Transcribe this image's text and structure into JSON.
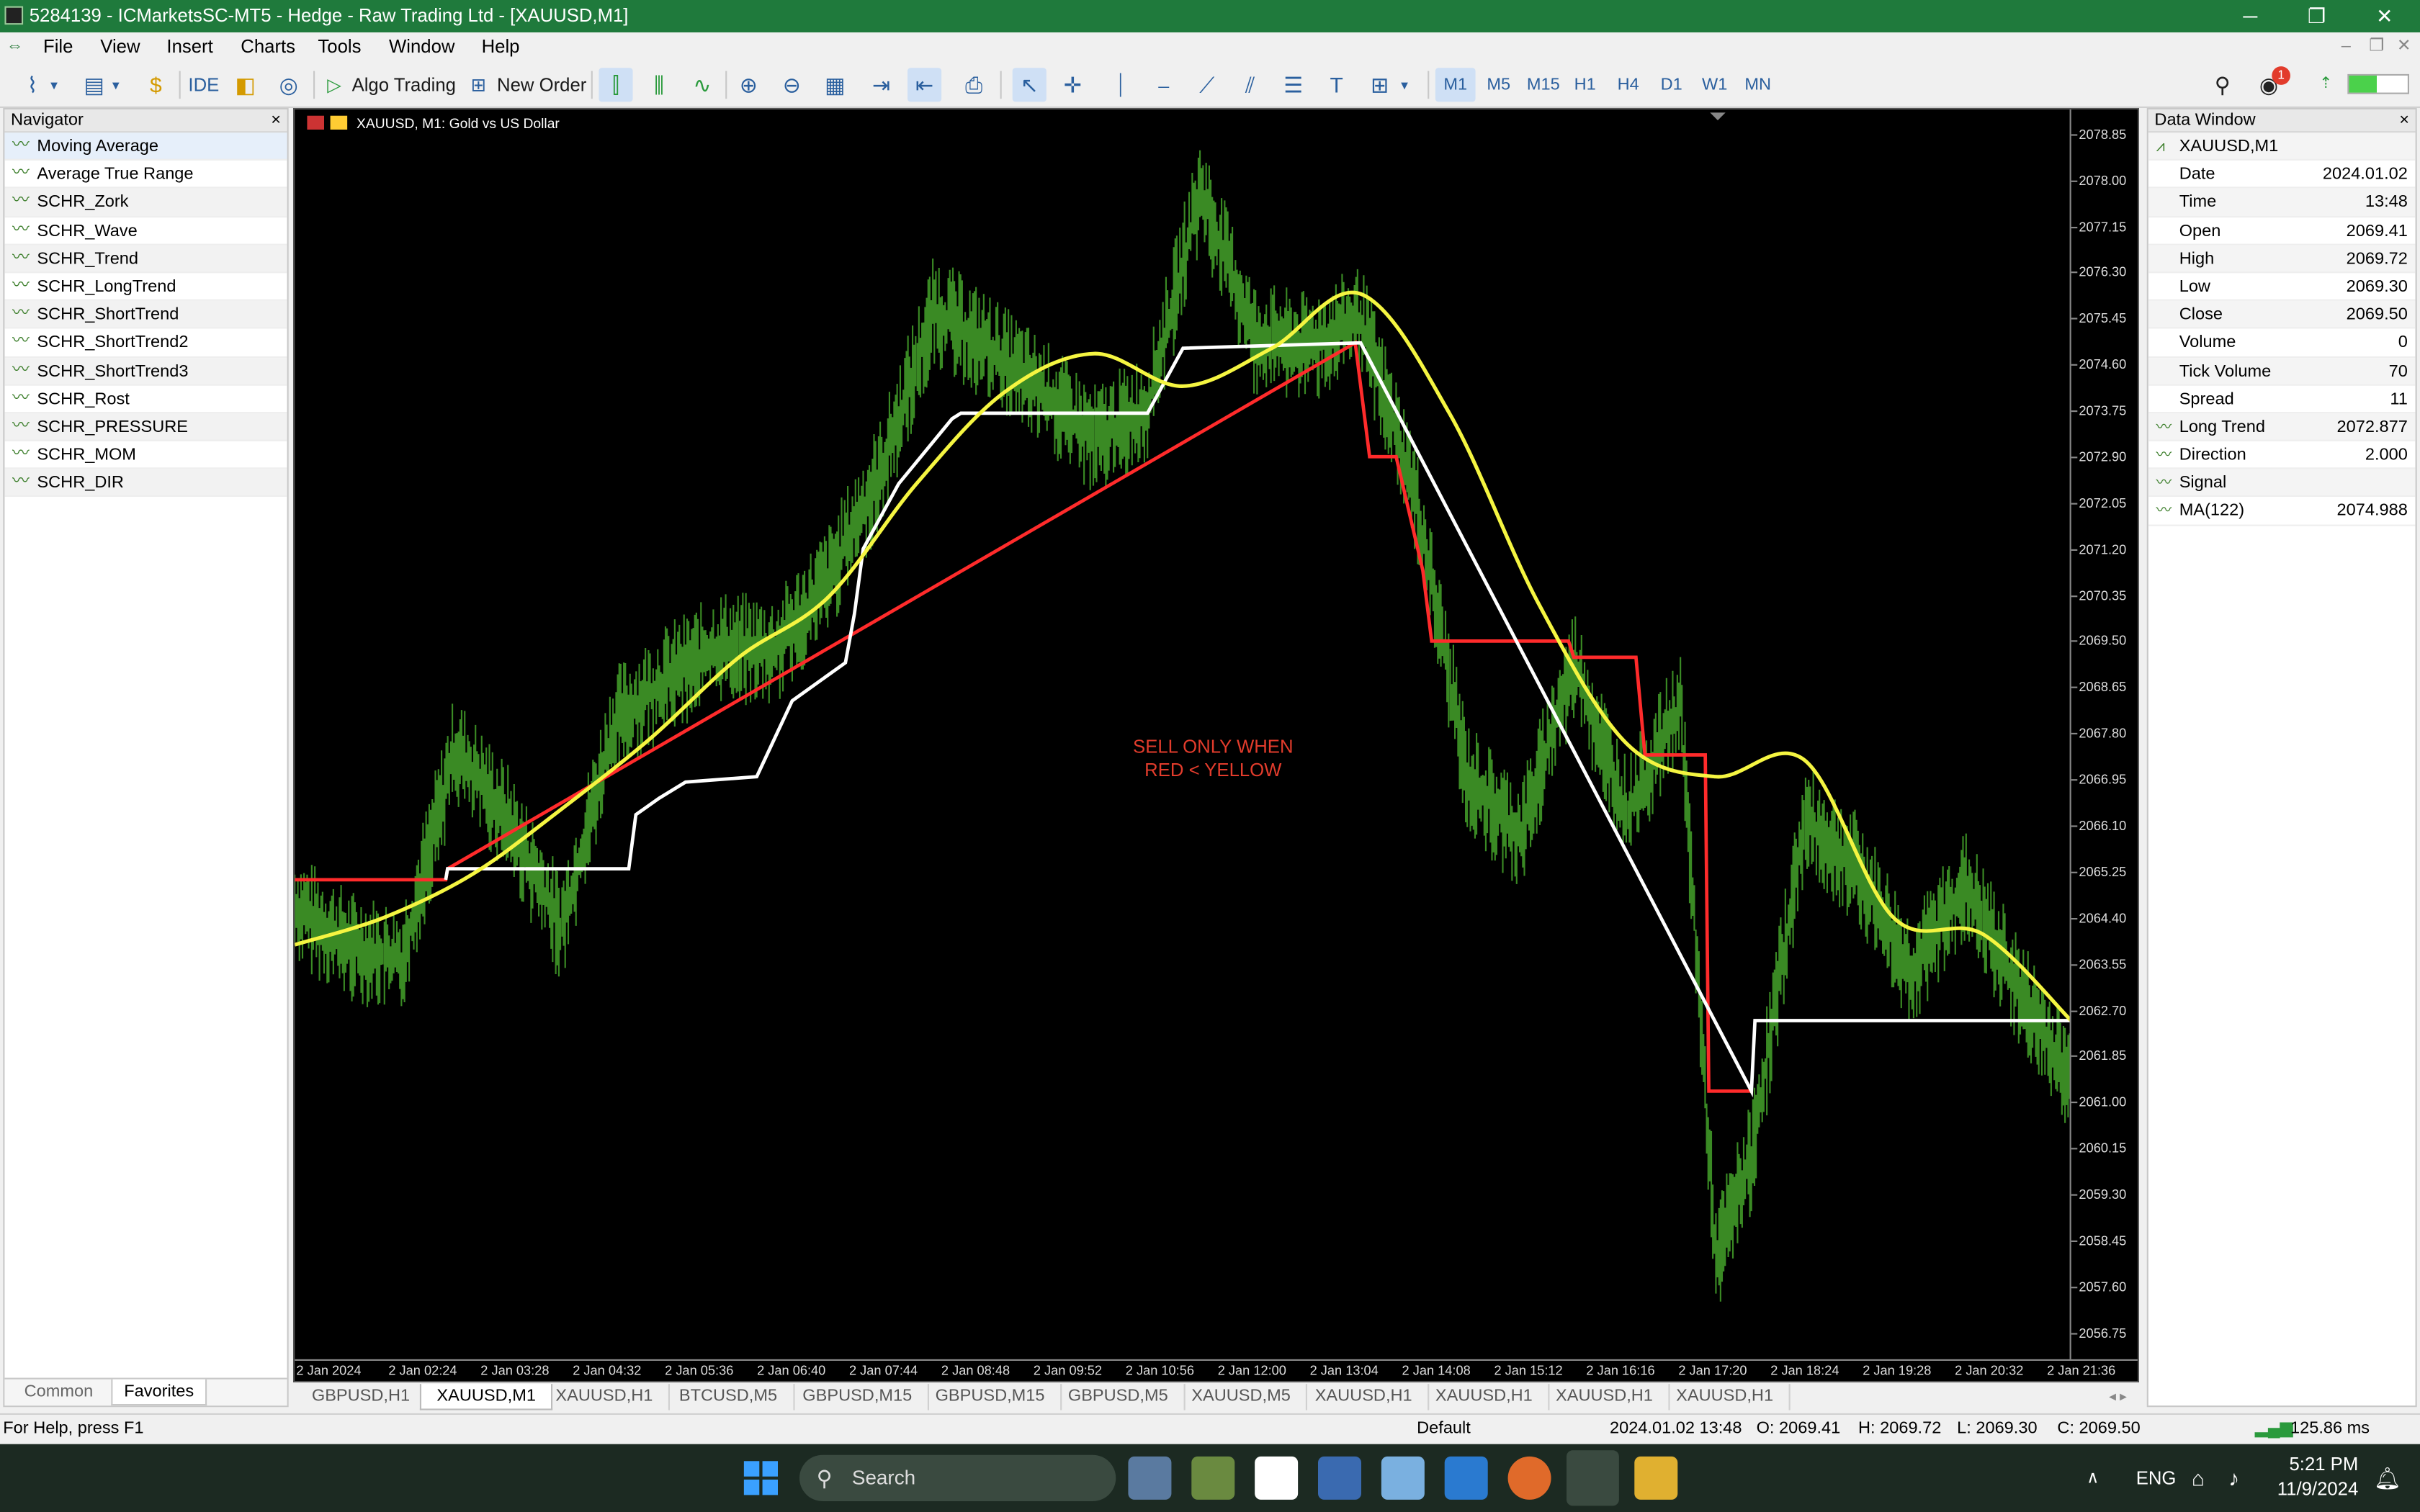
{
  "window": {
    "title": "5284139 - ICMarketsSC-MT5 - Hedge - Raw Trading Ltd - [XAUUSD,M1]",
    "minimize": "─",
    "restore": "❐",
    "close": "✕"
  },
  "menu": [
    "File",
    "View",
    "Insert",
    "Charts",
    "Tools",
    "Window",
    "Help"
  ],
  "menu_mdi": [
    "–",
    "❐",
    "✕"
  ],
  "toolbar": {
    "ide": "IDE",
    "algo_trading": "Algo Trading",
    "new_order": "New Order",
    "timeframes": [
      "M1",
      "M5",
      "M15",
      "H1",
      "H4",
      "D1",
      "W1",
      "MN"
    ],
    "active_timeframe": "M1",
    "notification_count": "1"
  },
  "navigator": {
    "title": "Navigator",
    "close": "×",
    "items": [
      "Moving Average",
      "Average True Range",
      "SCHR_Zork",
      "SCHR_Wave",
      "SCHR_Trend",
      "SCHR_LongTrend",
      "SCHR_ShortTrend",
      "SCHR_ShortTrend2",
      "SCHR_ShortTrend3",
      "SCHR_Rost",
      "SCHR_PRESSURE",
      "SCHR_MOM",
      "SCHR_DIR"
    ],
    "tabs": [
      "Common",
      "Favorites"
    ],
    "active_tab": "Favorites"
  },
  "chart": {
    "label": "XAUUSD, M1:  Gold vs US Dollar",
    "annotation": [
      "SELL ONLY WHEN",
      "RED < YELLOW"
    ],
    "annotation_color": "#e23c2c",
    "background": "#000000",
    "price_ticks": [
      "2078.85",
      "2078.00",
      "2077.15",
      "2076.30",
      "2075.45",
      "2074.60",
      "2073.75",
      "2072.90",
      "2072.05",
      "2071.20",
      "2070.35",
      "2069.50",
      "2068.65",
      "2067.80",
      "2066.95",
      "2066.10",
      "2065.25",
      "2064.40",
      "2063.55",
      "2062.70",
      "2061.85",
      "2061.00",
      "2060.15",
      "2059.30",
      "2058.45",
      "2057.60",
      "2056.75"
    ],
    "time_ticks": [
      "2 Jan 2024",
      "2 Jan 02:24",
      "2 Jan 03:28",
      "2 Jan 04:32",
      "2 Jan 05:36",
      "2 Jan 06:40",
      "2 Jan 07:44",
      "2 Jan 08:48",
      "2 Jan 09:52",
      "2 Jan 10:56",
      "2 Jan 12:00",
      "2 Jan 13:04",
      "2 Jan 14:08",
      "2 Jan 15:12",
      "2 Jan 16:16",
      "2 Jan 17:20",
      "2 Jan 18:24",
      "2 Jan 19:28",
      "2 Jan 20:32",
      "2 Jan 21:36"
    ]
  },
  "chart_data": {
    "type": "line",
    "series": [
      {
        "name": "MA(122)",
        "color": "#f5f541",
        "x": [
          0,
          5,
          10,
          15,
          20,
          25,
          30,
          35,
          40,
          45,
          50,
          55,
          60,
          65,
          70,
          75,
          80,
          85,
          90,
          95,
          100
        ],
        "values": [
          2063.9,
          2064.4,
          2065.2,
          2066.4,
          2067.7,
          2069.2,
          2070.3,
          2072.4,
          2074.1,
          2074.8,
          2074.2,
          2074.9,
          2075.9,
          2073.7,
          2070.2,
          2067.6,
          2067.0,
          2067.3,
          2064.4,
          2064.1,
          2062.5
        ]
      },
      {
        "name": "Long Trend",
        "color": "#ff2b2b",
        "x": [
          0,
          8.5,
          8.6,
          59.7,
          60.5,
          62,
          63.5,
          64,
          71.7,
          72,
          75.5,
          76,
          79.4,
          79.6,
          82
        ],
        "values": [
          2065.1,
          2065.1,
          2065.3,
          2075.0,
          2072.9,
          2072.9,
          2070.8,
          2069.5,
          2069.5,
          2069.2,
          2069.2,
          2067.4,
          2067.4,
          2061.2,
          2061.2
        ]
      },
      {
        "name": "Signal",
        "color": "#ffffff",
        "x": [
          8.5,
          8.6,
          18.8,
          19.2,
          20.5,
          22,
          26,
          28,
          31,
          31.5,
          32,
          34,
          37,
          37.5,
          48,
          50,
          60,
          82,
          82.2,
          100
        ],
        "values": [
          2065.1,
          2065.3,
          2065.3,
          2066.3,
          2066.6,
          2066.9,
          2067.0,
          2068.4,
          2069.1,
          2070.0,
          2071.2,
          2072.4,
          2073.6,
          2073.7,
          2073.7,
          2074.9,
          2075.0,
          2061.2,
          2062.5,
          2062.5
        ]
      },
      {
        "name": "XAUUSD M1",
        "color": "#3a8a24",
        "x": [
          0,
          3,
          6,
          9,
          12,
          15,
          18,
          21,
          24,
          27,
          30,
          33,
          36,
          39,
          42,
          45,
          48,
          51,
          54,
          57,
          60,
          63,
          66,
          69,
          72,
          75,
          78,
          80,
          82,
          85,
          88,
          91,
          94,
          97,
          100
        ],
        "values": [
          2064.6,
          2063.9,
          2063.6,
          2067.5,
          2066.2,
          2064.2,
          2068.0,
          2068.8,
          2069.4,
          2069.3,
          2070.6,
          2072.6,
          2075.6,
          2074.9,
          2074.1,
          2073.2,
          2073.8,
          2077.8,
          2075.1,
          2074.9,
          2075.4,
          2072.3,
          2067.0,
          2065.9,
          2069.1,
          2066.3,
          2068.3,
          2058.1,
          2060.0,
          2066.2,
          2065.3,
          2063.4,
          2065.0,
          2063.1,
          2061.4
        ]
      }
    ],
    "ylim": [
      2056.2,
      2079.3
    ],
    "grid": false,
    "legend": "none"
  },
  "symbol_tabs": [
    "GBPUSD,H1",
    "XAUUSD,M1",
    "XAUUSD,H1",
    "BTCUSD,M5",
    "GBPUSD,M15",
    "GBPUSD,M15",
    "GBPUSD,M5",
    "XAUUSD,M5",
    "XAUUSD,H1",
    "XAUUSD,H1",
    "XAUUSD,H1",
    "XAUUSD,H1"
  ],
  "active_symbol_tab": "XAUUSD,M1",
  "data_window": {
    "title": "Data Window",
    "close": "×",
    "symbol": "XAUUSD,M1",
    "rows": [
      {
        "k": "Date",
        "v": "2024.01.02"
      },
      {
        "k": "Time",
        "v": "13:48"
      },
      {
        "k": "Open",
        "v": "2069.41"
      },
      {
        "k": "High",
        "v": "2069.72"
      },
      {
        "k": "Low",
        "v": "2069.30"
      },
      {
        "k": "Close",
        "v": "2069.50"
      },
      {
        "k": "Volume",
        "v": "0"
      },
      {
        "k": "Tick Volume",
        "v": "70"
      },
      {
        "k": "Spread",
        "v": "11"
      }
    ],
    "indicators": [
      {
        "k": "Long Trend",
        "v": "2072.877"
      },
      {
        "k": "Direction",
        "v": "2.000"
      },
      {
        "k": "Signal",
        "v": ""
      },
      {
        "k": "MA(122)",
        "v": "2074.988"
      }
    ]
  },
  "status": {
    "help": "For Help, press F1",
    "profile": "Default",
    "datetime": "2024.01.02 13:48",
    "open": "O: 2069.41",
    "high": "H: 2069.72",
    "low": "L: 2069.30",
    "close": "C: 2069.50",
    "ping": "125.86 ms"
  },
  "taskbar": {
    "search": "Search",
    "lang": "ENG",
    "time": "5:21 PM",
    "date": "11/9/2024"
  }
}
